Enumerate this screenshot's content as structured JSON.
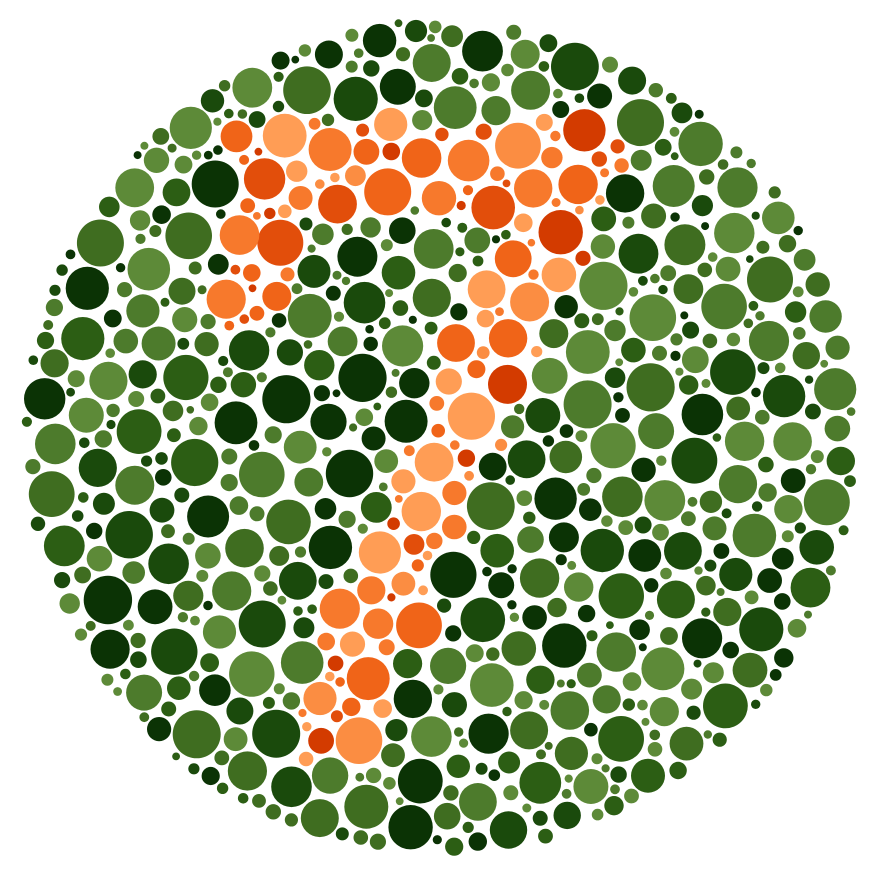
{
  "plate": {
    "type": "ishihara-color-vision-test-plate",
    "hidden_figure": "7",
    "background": "#ffffff",
    "palette": {
      "ground": [
        "#0b3305",
        "#1a4a0c",
        "#2c5e14",
        "#3f6d20",
        "#4d7b2c",
        "#5d8a38"
      ],
      "figure": [
        "#d33b00",
        "#e24e0b",
        "#f06418",
        "#f7792c",
        "#fb8d42",
        "#ff9d55"
      ]
    }
  }
}
